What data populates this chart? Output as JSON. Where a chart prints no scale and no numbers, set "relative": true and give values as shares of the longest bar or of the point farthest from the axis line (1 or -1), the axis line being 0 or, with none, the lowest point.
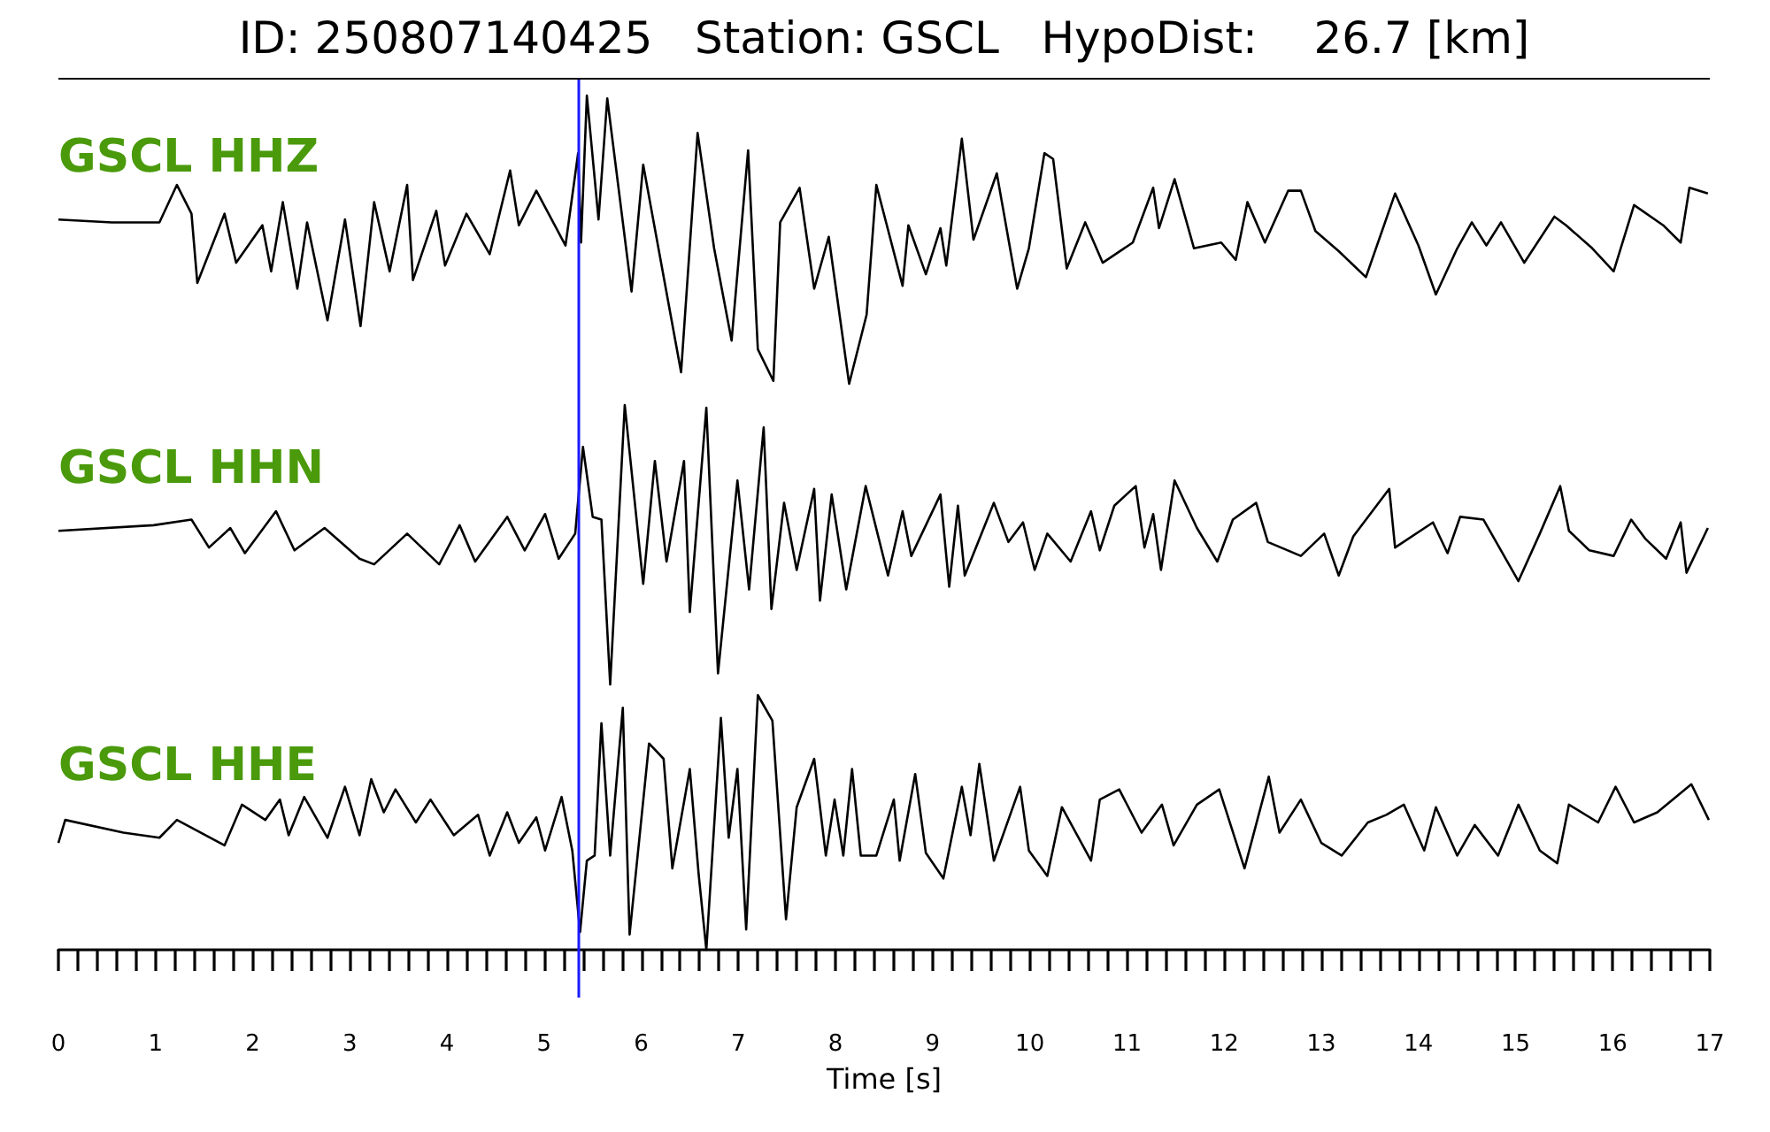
{
  "chart_data": [
    {
      "type": "line",
      "title": "ID: 250807140425   Station: GSCL   HypoDist:    26.7 [km]",
      "relative": true,
      "xlim": [
        0,
        17
      ],
      "tick_labels": false,
      "ref_lines": [
        {
          "axis": "x",
          "value": 5.35,
          "color": "#1a1aff"
        }
      ],
      "series": [
        {
          "name": "GSCL HHZ",
          "color": "#000000",
          "x": [
            0,
            0.55,
            1.04,
            1.22,
            1.37,
            1.43,
            1.71,
            1.83,
            2.1,
            2.19,
            2.31,
            2.46,
            2.56,
            2.77,
            2.95,
            3.11,
            3.25,
            3.41,
            3.59,
            3.65,
            3.89,
            3.98,
            4.2,
            4.44,
            4.65,
            4.74,
            4.92,
            5.22,
            5.35,
            5.38,
            5.44,
            5.56,
            5.65,
            5.9,
            6.02,
            6.41,
            6.58,
            6.75,
            6.93,
            7.1,
            7.2,
            7.36,
            7.43,
            7.63,
            7.78,
            7.93,
            8.14,
            8.32,
            8.42,
            8.69,
            8.75,
            8.93,
            9.08,
            9.14,
            9.3,
            9.42,
            9.66,
            9.87,
            9.99,
            10.15,
            10.24,
            10.38,
            10.57,
            10.75,
            11.06,
            11.27,
            11.33,
            11.49,
            11.69,
            11.97,
            12.12,
            12.24,
            12.42,
            12.66,
            12.79,
            12.94,
            13.18,
            13.46,
            13.76,
            14,
            14.18,
            14.4,
            14.55,
            14.7,
            14.85,
            15.09,
            15.4,
            15.52,
            15.79,
            16.01,
            16.22,
            16.52,
            16.7,
            16.79,
            16.98
          ],
          "values": [
            0.57,
            0.56,
            0.56,
            0.69,
            0.59,
            0.35,
            0.59,
            0.42,
            0.55,
            0.39,
            0.63,
            0.33,
            0.56,
            0.22,
            0.57,
            0.2,
            0.63,
            0.39,
            0.69,
            0.36,
            0.6,
            0.41,
            0.59,
            0.45,
            0.74,
            0.55,
            0.67,
            0.48,
            0.8,
            0.49,
            1,
            0.57,
            0.99,
            0.32,
            0.76,
            0.04,
            0.87,
            0.47,
            0.15,
            0.81,
            0.12,
            0.01,
            0.56,
            0.68,
            0.33,
            0.51,
            0,
            0.24,
            0.69,
            0.34,
            0.55,
            0.38,
            0.54,
            0.41,
            0.85,
            0.5,
            0.73,
            0.33,
            0.47,
            0.8,
            0.78,
            0.4,
            0.56,
            0.42,
            0.49,
            0.68,
            0.54,
            0.71,
            0.47,
            0.49,
            0.43,
            0.63,
            0.49,
            0.67,
            0.67,
            0.53,
            0.46,
            0.37,
            0.66,
            0.48,
            0.31,
            0.47,
            0.56,
            0.48,
            0.56,
            0.42,
            0.58,
            0.55,
            0.47,
            0.39,
            0.62,
            0.55,
            0.49,
            0.68,
            0.66
          ]
        }
      ]
    },
    {
      "type": "line",
      "relative": true,
      "xlim": [
        0,
        17
      ],
      "tick_labels": false,
      "ref_lines": [
        {
          "axis": "x",
          "value": 5.35,
          "color": "#1a1aff"
        }
      ],
      "series": [
        {
          "name": "GSCL HHN",
          "color": "#000000",
          "x": [
            0,
            0.98,
            1.37,
            1.55,
            1.77,
            1.92,
            2.24,
            2.43,
            2.74,
            3.1,
            3.25,
            3.59,
            3.92,
            4.13,
            4.29,
            4.62,
            4.8,
            5.01,
            5.15,
            5.32,
            5.4,
            5.5,
            5.59,
            5.68,
            5.83,
            6.02,
            6.14,
            6.26,
            6.44,
            6.5,
            6.67,
            6.79,
            6.99,
            7.11,
            7.26,
            7.34,
            7.47,
            7.6,
            7.78,
            7.84,
            7.96,
            8.11,
            8.31,
            8.54,
            8.69,
            8.78,
            9.08,
            9.17,
            9.26,
            9.33,
            9.63,
            9.78,
            9.93,
            10.05,
            10.18,
            10.42,
            10.63,
            10.72,
            10.87,
            11.09,
            11.18,
            11.27,
            11.35,
            11.49,
            11.72,
            11.93,
            12.09,
            12.33,
            12.45,
            12.79,
            13.03,
            13.18,
            13.33,
            13.7,
            13.76,
            14.15,
            14.3,
            14.43,
            14.67,
            15.03,
            15.25,
            15.46,
            15.55,
            15.76,
            16.01,
            16.19,
            16.34,
            16.55,
            16.7,
            16.76,
            16.98
          ],
          "values": [
            0.55,
            0.57,
            0.59,
            0.49,
            0.56,
            0.47,
            0.62,
            0.48,
            0.56,
            0.45,
            0.43,
            0.54,
            0.43,
            0.57,
            0.44,
            0.6,
            0.48,
            0.61,
            0.45,
            0.54,
            0.85,
            0.6,
            0.59,
            0,
            1,
            0.36,
            0.8,
            0.44,
            0.8,
            0.26,
            0.99,
            0.04,
            0.73,
            0.34,
            0.92,
            0.27,
            0.65,
            0.41,
            0.7,
            0.3,
            0.68,
            0.34,
            0.71,
            0.39,
            0.62,
            0.46,
            0.68,
            0.35,
            0.64,
            0.39,
            0.65,
            0.51,
            0.58,
            0.41,
            0.54,
            0.44,
            0.62,
            0.48,
            0.64,
            0.71,
            0.49,
            0.61,
            0.41,
            0.73,
            0.56,
            0.44,
            0.59,
            0.65,
            0.51,
            0.46,
            0.54,
            0.39,
            0.53,
            0.7,
            0.49,
            0.58,
            0.47,
            0.6,
            0.59,
            0.37,
            0.54,
            0.71,
            0.55,
            0.48,
            0.46,
            0.59,
            0.52,
            0.45,
            0.58,
            0.4,
            0.56
          ]
        }
      ]
    },
    {
      "type": "line",
      "relative": true,
      "xlim": [
        0,
        17
      ],
      "tick_labels": "x",
      "xlabel": "Time [s]",
      "xticks": [
        0,
        {
          "value": 0.2,
          "label": null
        },
        {
          "value": 0.4,
          "label": null
        },
        {
          "value": 0.6,
          "label": null
        },
        {
          "value": 0.8,
          "label": null
        },
        1,
        {
          "value": 1.2,
          "label": null
        },
        {
          "value": 1.4,
          "label": null
        },
        {
          "value": 1.6,
          "label": null
        },
        {
          "value": 1.8,
          "label": null
        },
        2,
        {
          "value": 2.2,
          "label": null
        },
        {
          "value": 2.4,
          "label": null
        },
        {
          "value": 2.6,
          "label": null
        },
        {
          "value": 2.8,
          "label": null
        },
        3,
        {
          "value": 3.2,
          "label": null
        },
        {
          "value": 3.4,
          "label": null
        },
        {
          "value": 3.6,
          "label": null
        },
        {
          "value": 3.8,
          "label": null
        },
        4,
        {
          "value": 4.2,
          "label": null
        },
        {
          "value": 4.4,
          "label": null
        },
        {
          "value": 4.6,
          "label": null
        },
        {
          "value": 4.8,
          "label": null
        },
        5,
        {
          "value": 5.2,
          "label": null
        },
        {
          "value": 5.4,
          "label": null
        },
        {
          "value": 5.6,
          "label": null
        },
        {
          "value": 5.8,
          "label": null
        },
        6,
        {
          "value": 6.2,
          "label": null
        },
        {
          "value": 6.4,
          "label": null
        },
        {
          "value": 6.6,
          "label": null
        },
        {
          "value": 6.8,
          "label": null
        },
        7,
        {
          "value": 7.2,
          "label": null
        },
        {
          "value": 7.4,
          "label": null
        },
        {
          "value": 7.6,
          "label": null
        },
        {
          "value": 7.8,
          "label": null
        },
        8,
        {
          "value": 8.2,
          "label": null
        },
        {
          "value": 8.4,
          "label": null
        },
        {
          "value": 8.6,
          "label": null
        },
        {
          "value": 8.8,
          "label": null
        },
        9,
        {
          "value": 9.2,
          "label": null
        },
        {
          "value": 9.4,
          "label": null
        },
        {
          "value": 9.6,
          "label": null
        },
        {
          "value": 9.8,
          "label": null
        },
        10,
        {
          "value": 10.2,
          "label": null
        },
        {
          "value": 10.4,
          "label": null
        },
        {
          "value": 10.6,
          "label": null
        },
        {
          "value": 10.8,
          "label": null
        },
        11,
        {
          "value": 11.2,
          "label": null
        },
        {
          "value": 11.4,
          "label": null
        },
        {
          "value": 11.6,
          "label": null
        },
        {
          "value": 11.8,
          "label": null
        },
        12,
        {
          "value": 12.2,
          "label": null
        },
        {
          "value": 12.4,
          "label": null
        },
        {
          "value": 12.6,
          "label": null
        },
        {
          "value": 12.8,
          "label": null
        },
        13,
        {
          "value": 13.2,
          "label": null
        },
        {
          "value": 13.4,
          "label": null
        },
        {
          "value": 13.6,
          "label": null
        },
        {
          "value": 13.8,
          "label": null
        },
        14,
        {
          "value": 14.2,
          "label": null
        },
        {
          "value": 14.4,
          "label": null
        },
        {
          "value": 14.6,
          "label": null
        },
        {
          "value": 14.8,
          "label": null
        },
        15,
        {
          "value": 15.2,
          "label": null
        },
        {
          "value": 15.4,
          "label": null
        },
        {
          "value": 15.6,
          "label": null
        },
        {
          "value": 15.8,
          "label": null
        },
        16,
        {
          "value": 16.2,
          "label": null
        },
        {
          "value": 16.4,
          "label": null
        },
        {
          "value": 16.6,
          "label": null
        },
        {
          "value": 16.8,
          "label": null
        },
        17
      ],
      "ref_lines": [
        {
          "axis": "x",
          "value": 5.35,
          "color": "#1a1aff"
        }
      ],
      "series": [
        {
          "name": "GSCL HHE",
          "color": "#000000",
          "x": [
            0,
            0.07,
            0.67,
            1.04,
            1.22,
            1.71,
            1.89,
            2.13,
            2.28,
            2.37,
            2.53,
            2.77,
            2.95,
            3.1,
            3.22,
            3.35,
            3.47,
            3.68,
            3.83,
            4.07,
            4.32,
            4.44,
            4.62,
            4.74,
            4.92,
            5.01,
            5.18,
            5.29,
            5.37,
            5.44,
            5.52,
            5.59,
            5.68,
            5.81,
            5.88,
            6.08,
            6.23,
            6.32,
            6.5,
            6.59,
            6.67,
            6.82,
            6.9,
            6.99,
            7.08,
            7.2,
            7.35,
            7.49,
            7.6,
            7.78,
            7.9,
            7.99,
            8.08,
            8.17,
            8.26,
            8.42,
            8.6,
            8.66,
            8.82,
            8.93,
            9.11,
            9.3,
            9.39,
            9.48,
            9.63,
            9.9,
            9.99,
            10.18,
            10.33,
            10.63,
            10.72,
            10.92,
            11.15,
            11.36,
            11.48,
            11.72,
            11.95,
            12.21,
            12.46,
            12.57,
            12.79,
            13,
            13.21,
            13.48,
            13.67,
            13.85,
            14.06,
            14.18,
            14.4,
            14.58,
            14.82,
            15.03,
            15.25,
            15.43,
            15.55,
            15.85,
            16.03,
            16.22,
            16.46,
            16.81,
            16.99
          ],
          "values": [
            0.42,
            0.51,
            0.46,
            0.44,
            0.51,
            0.41,
            0.57,
            0.51,
            0.59,
            0.45,
            0.6,
            0.44,
            0.64,
            0.45,
            0.67,
            0.54,
            0.63,
            0.5,
            0.59,
            0.45,
            0.53,
            0.37,
            0.54,
            0.42,
            0.52,
            0.39,
            0.6,
            0.39,
            0.07,
            0.35,
            0.37,
            0.89,
            0.37,
            0.95,
            0.06,
            0.81,
            0.75,
            0.32,
            0.71,
            0.3,
            0,
            0.91,
            0.44,
            0.71,
            0.08,
            1,
            0.9,
            0.12,
            0.56,
            0.75,
            0.37,
            0.59,
            0.37,
            0.71,
            0.37,
            0.37,
            0.59,
            0.35,
            0.69,
            0.38,
            0.28,
            0.64,
            0.45,
            0.73,
            0.35,
            0.64,
            0.39,
            0.29,
            0.56,
            0.35,
            0.59,
            0.63,
            0.46,
            0.57,
            0.41,
            0.57,
            0.63,
            0.32,
            0.68,
            0.46,
            0.59,
            0.42,
            0.37,
            0.5,
            0.53,
            0.57,
            0.39,
            0.56,
            0.37,
            0.49,
            0.37,
            0.57,
            0.39,
            0.34,
            0.57,
            0.5,
            0.64,
            0.5,
            0.54,
            0.65,
            0.51
          ]
        }
      ]
    }
  ]
}
